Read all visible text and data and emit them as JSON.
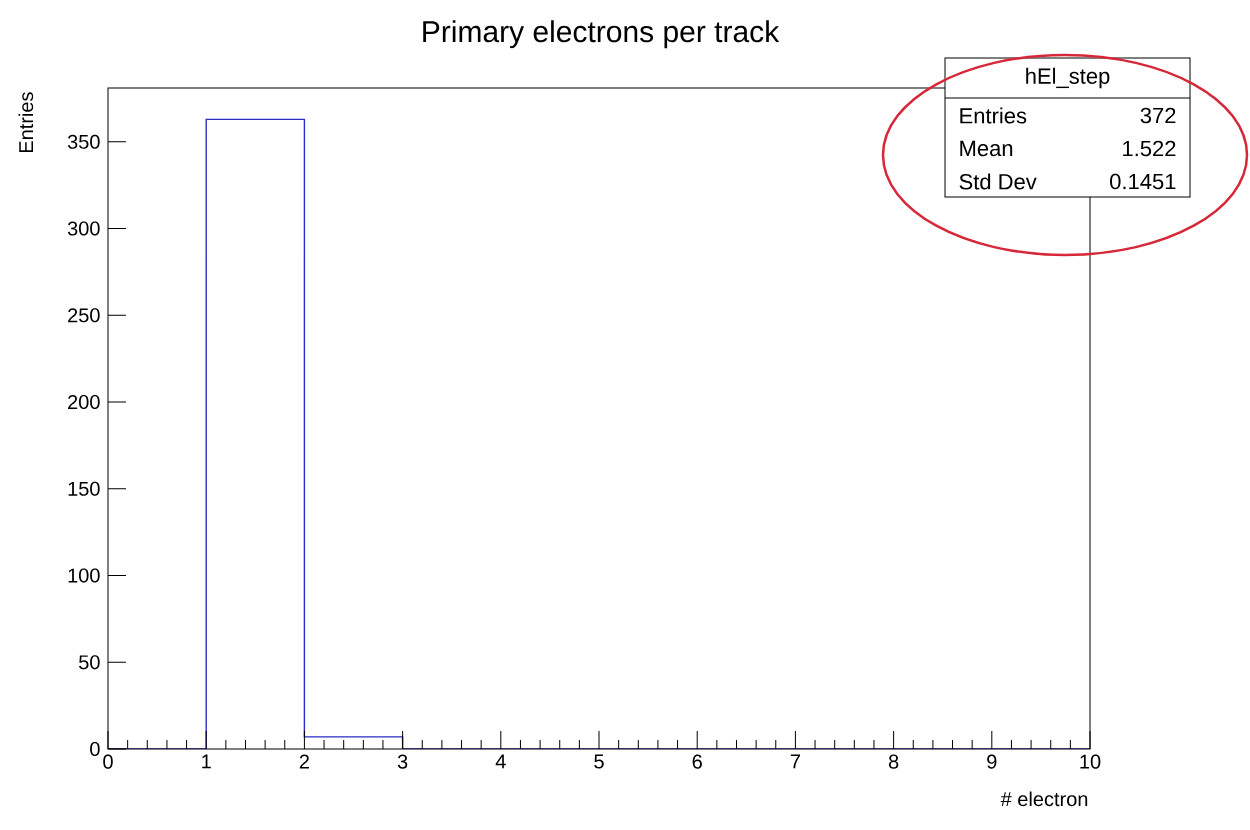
{
  "chart_data": {
    "type": "histogram",
    "title": "Primary electrons per track",
    "xlabel": "# electron",
    "ylabel": "Entries",
    "bins": [
      0,
      1,
      2,
      3,
      4,
      5,
      6,
      7,
      8,
      9,
      10
    ],
    "values": [
      0,
      363,
      7,
      0,
      0,
      0,
      0,
      0,
      0,
      0
    ],
    "color": "#2b2bc6",
    "xlim": [
      0,
      10
    ],
    "ylim": [
      0,
      381
    ],
    "xticks": [
      0,
      1,
      2,
      3,
      4,
      5,
      6,
      7,
      8,
      9,
      10
    ],
    "yticks": [
      0,
      50,
      100,
      150,
      200,
      250,
      300,
      350
    ],
    "annotations": [
      "hEl_step",
      "Entries",
      "372",
      "Mean",
      "1.522",
      "Std Dev",
      "0.1451"
    ],
    "grid": false
  }
}
